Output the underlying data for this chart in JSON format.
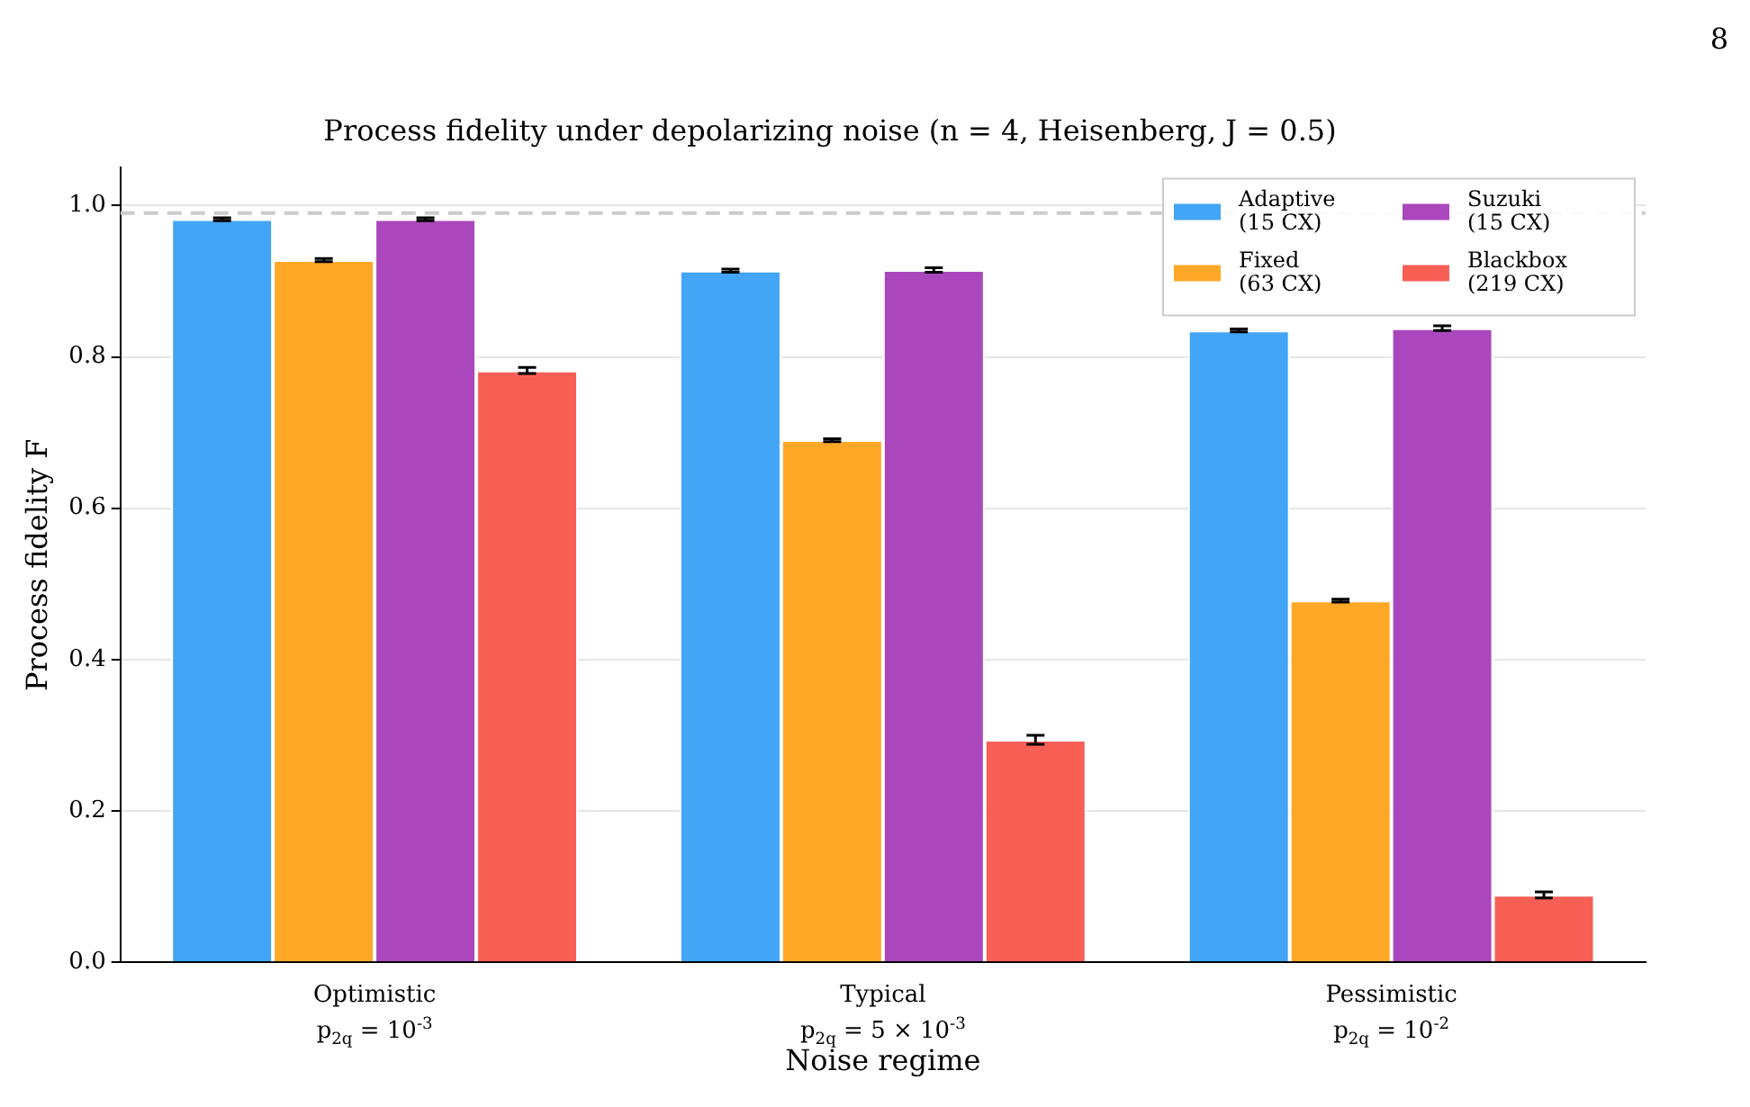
{
  "chart_data": {
    "type": "bar",
    "title": "Process fidelity under depolarizing noise (n = 4, Heisenberg, J = 0.5)",
    "xlabel": "Noise regime",
    "ylabel": "Process fidelity F",
    "categories": [
      "Optimistic\np$_{2q}$ = 10$^{-3}$",
      "Typical\np$_{2q}$ = 5 × 10$^{-3}$",
      "Pessimistic\np$_{2q}$ = 10$^{-2}$"
    ],
    "series": [
      {
        "name": "Adaptive\n(15 CX)",
        "color": "#42a5f5",
        "values": [
          0.982,
          0.914,
          0.835
        ],
        "errors": [
          0.002,
          0.002,
          0.002
        ]
      },
      {
        "name": "Fixed\n(63 CX)",
        "color": "#ffa726",
        "values": [
          0.928,
          0.69,
          0.478
        ],
        "errors": [
          0.002,
          0.002,
          0.002
        ]
      },
      {
        "name": "Suzuki\n(15 CX)",
        "color": "#ab47bc",
        "values": [
          0.982,
          0.915,
          0.838
        ],
        "errors": [
          0.002,
          0.003,
          0.003
        ]
      },
      {
        "name": "Blackbox\n(219 CX)",
        "color": "#f75f55",
        "values": [
          0.782,
          0.294,
          0.089
        ],
        "errors": [
          0.004,
          0.006,
          0.004
        ]
      }
    ],
    "ylim": [
      0,
      1.05
    ],
    "yticks": [
      {
        "value": 0,
        "label": "0.0"
      },
      0.2,
      0.4,
      0.6,
      0.8,
      {
        "value": 1,
        "label": "1.0"
      }
    ],
    "grid": "y",
    "legend": "top right",
    "ref_lines": [
      {
        "axis": "y",
        "value": 0.99,
        "color": "#cccccc",
        "line_style": "dashed"
      }
    ],
    "annotations": [
      "8"
    ]
  }
}
